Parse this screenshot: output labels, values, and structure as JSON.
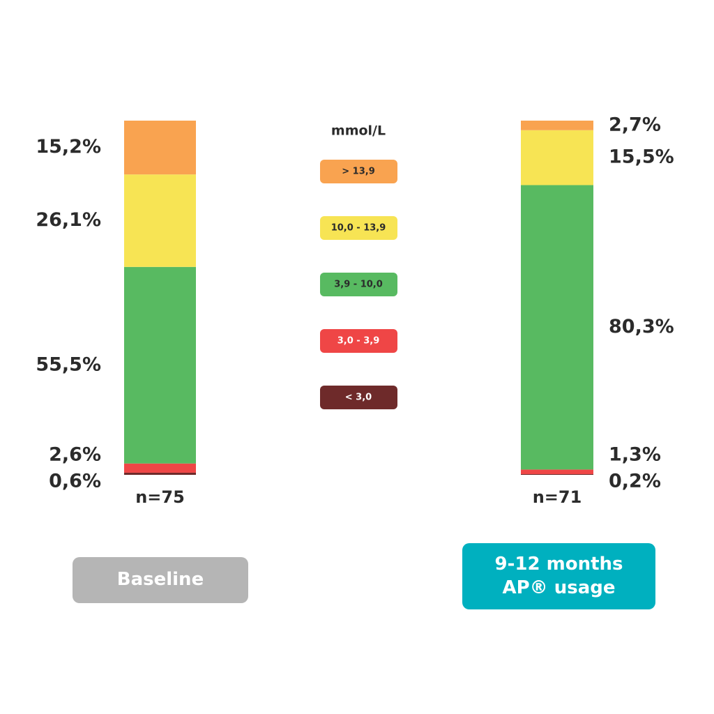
{
  "chart_data": {
    "type": "stacked-bar",
    "categories": [
      "Baseline",
      "9-12 months AP® usage"
    ],
    "sample_sizes": [
      "n=75",
      "n=71"
    ],
    "legend_title": "mmol/L",
    "ylim": [
      0,
      100
    ],
    "series": [
      {
        "name": "< 3,0",
        "color": "#6e2a2a",
        "values": [
          0.6,
          0.2
        ],
        "value_labels": [
          "0,6%",
          "0,2%"
        ]
      },
      {
        "name": "3,0 - 3,9",
        "color": "#ef4646",
        "values": [
          2.6,
          1.3
        ],
        "value_labels": [
          "2,6%",
          "1,3%"
        ]
      },
      {
        "name": "3,9 - 10,0",
        "color": "#58ba61",
        "values": [
          55.5,
          80.3
        ],
        "value_labels": [
          "55,5%",
          "80,3%"
        ]
      },
      {
        "name": "10,0 - 13,9",
        "color": "#f7e454",
        "values": [
          26.1,
          15.5
        ],
        "value_labels": [
          "26,1%",
          "15,5%"
        ]
      },
      {
        "name": "> 13,9",
        "color": "#f9a350",
        "values": [
          15.2,
          2.7
        ],
        "value_labels": [
          "15,2%",
          "2,7%"
        ]
      }
    ],
    "category_colors": [
      "#b5b5b5",
      "#00b0bf"
    ]
  }
}
